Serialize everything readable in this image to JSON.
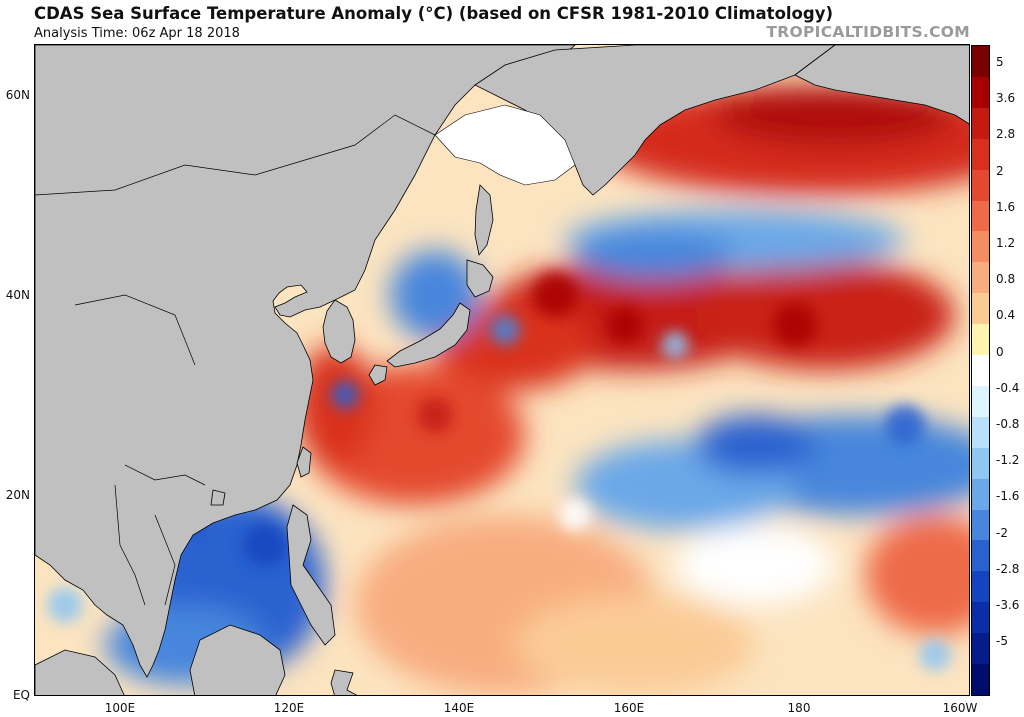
{
  "header": {
    "title": "CDAS Sea Surface Temperature Anomaly (°C) (based on CFSR 1981-2010 Climatology)",
    "subtitle": "Analysis Time: 06z Apr 18 2018",
    "brand": "TROPICALTIDBITS.COM"
  },
  "map": {
    "region": "Western Pacific",
    "land_color": "#c0c0c0",
    "ice_color": "#ffffff",
    "lat_labels": [
      "60N",
      "40N",
      "20N",
      "EQ"
    ],
    "lon_labels": [
      "100E",
      "120E",
      "140E",
      "160E",
      "180",
      "160W"
    ]
  },
  "colorbar": {
    "labels": [
      "5",
      "3.6",
      "2.8",
      "2",
      "1.6",
      "1.2",
      "0.8",
      "0.4",
      "0",
      "-0.4",
      "-0.8",
      "-1.2",
      "-1.6",
      "-2",
      "-2.8",
      "-3.6",
      "-5"
    ],
    "colors": [
      "#7a0000",
      "#a80000",
      "#c41a12",
      "#d9301e",
      "#e4482f",
      "#ee6a48",
      "#f48e62",
      "#f8ad80",
      "#fbcb96",
      "#fff3b0",
      "#ffffff",
      "#dff4ff",
      "#b8e0fa",
      "#8fc6f2",
      "#6aa8e8",
      "#4786dc",
      "#2962d0",
      "#1444c0",
      "#0a2ea8",
      "#061c8c",
      "#020c6e"
    ]
  }
}
